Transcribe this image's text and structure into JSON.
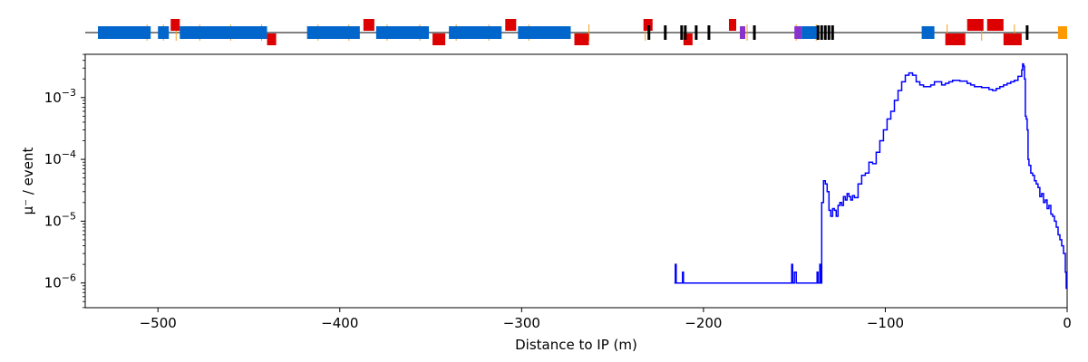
{
  "chart_data": {
    "type": "line",
    "title": "",
    "xlabel": "Distance to IP (m)",
    "ylabel": "μ⁻ / event",
    "xlim": [
      -540,
      0
    ],
    "ylim_exp": [
      -6.4,
      -2.3
    ],
    "yscale": "log",
    "grid": false,
    "x_ticks": [
      {
        "value": -500,
        "label": "−500"
      },
      {
        "value": -400,
        "label": "−400"
      },
      {
        "value": -300,
        "label": "−300"
      },
      {
        "value": -200,
        "label": "−200"
      },
      {
        "value": -100,
        "label": "−100"
      },
      {
        "value": 0,
        "label": "0"
      }
    ],
    "y_ticks": [
      {
        "exp": -6,
        "base": "10",
        "sup": "−6"
      },
      {
        "exp": -5,
        "base": "10",
        "sup": "−5"
      },
      {
        "exp": -4,
        "base": "10",
        "sup": "−4"
      },
      {
        "exp": -3,
        "base": "10",
        "sup": "−3"
      }
    ],
    "series": [
      {
        "color": "#0000ff",
        "points": [
          [
            -216,
            1e-06
          ],
          [
            -215.5,
            2e-06
          ],
          [
            -215,
            1e-06
          ],
          [
            -212,
            1e-06
          ],
          [
            -211.5,
            1.5e-06
          ],
          [
            -211,
            1e-06
          ],
          [
            -152,
            1e-06
          ],
          [
            -151.5,
            2e-06
          ],
          [
            -151,
            1e-06
          ],
          [
            -150,
            1.5e-06
          ],
          [
            -149,
            1e-06
          ],
          [
            -138,
            1e-06
          ],
          [
            -137.5,
            1.5e-06
          ],
          [
            -137,
            1e-06
          ],
          [
            -136,
            2e-06
          ],
          [
            -135.5,
            1e-06
          ],
          [
            -135,
            2e-05
          ],
          [
            -134,
            4.5e-05
          ],
          [
            -133,
            4e-05
          ],
          [
            -132,
            3e-05
          ],
          [
            -131,
            1.5e-05
          ],
          [
            -130,
            1.2e-05
          ],
          [
            -129,
            1.6e-05
          ],
          [
            -128,
            1.5e-05
          ],
          [
            -127,
            1.2e-05
          ],
          [
            -126,
            1.8e-05
          ],
          [
            -125,
            2e-05
          ],
          [
            -124,
            1.8e-05
          ],
          [
            -123,
            2.5e-05
          ],
          [
            -122,
            2.2e-05
          ],
          [
            -121,
            2.8e-05
          ],
          [
            -120,
            2.5e-05
          ],
          [
            -119,
            2.2e-05
          ],
          [
            -118,
            2.6e-05
          ],
          [
            -117,
            2.4e-05
          ],
          [
            -115,
            4e-05
          ],
          [
            -113,
            5.5e-05
          ],
          [
            -111,
            6e-05
          ],
          [
            -109,
            9e-05
          ],
          [
            -107,
            8.5e-05
          ],
          [
            -105,
            0.00013
          ],
          [
            -103,
            0.0002
          ],
          [
            -101,
            0.0003
          ],
          [
            -99,
            0.00045
          ],
          [
            -97,
            0.0006
          ],
          [
            -95,
            0.0009
          ],
          [
            -93,
            0.0013
          ],
          [
            -91,
            0.0018
          ],
          [
            -89,
            0.0023
          ],
          [
            -87,
            0.0025
          ],
          [
            -85,
            0.0023
          ],
          [
            -83,
            0.0018
          ],
          [
            -81,
            0.0016
          ],
          [
            -79,
            0.0015
          ],
          [
            -77,
            0.0015
          ],
          [
            -75,
            0.0016
          ],
          [
            -73,
            0.0018
          ],
          [
            -71,
            0.0018
          ],
          [
            -69,
            0.0016
          ],
          [
            -67,
            0.0017
          ],
          [
            -65,
            0.0018
          ],
          [
            -63,
            0.0019
          ],
          [
            -61,
            0.0019
          ],
          [
            -59,
            0.00185
          ],
          [
            -57,
            0.00185
          ],
          [
            -55,
            0.0017
          ],
          [
            -53,
            0.0016
          ],
          [
            -51,
            0.0015
          ],
          [
            -49,
            0.0015
          ],
          [
            -47,
            0.00145
          ],
          [
            -45,
            0.00145
          ],
          [
            -43,
            0.00135
          ],
          [
            -41,
            0.0013
          ],
          [
            -39,
            0.0014
          ],
          [
            -37,
            0.0015
          ],
          [
            -35,
            0.0016
          ],
          [
            -33,
            0.0017
          ],
          [
            -31,
            0.0018
          ],
          [
            -29,
            0.0019
          ],
          [
            -27,
            0.0022
          ],
          [
            -25,
            0.0028
          ],
          [
            -24.5,
            0.0035
          ],
          [
            -24,
            0.0032
          ],
          [
            -23.5,
            0.002
          ],
          [
            -23,
            0.0005
          ],
          [
            -22.5,
            0.00045
          ],
          [
            -22,
            0.0003
          ],
          [
            -21.5,
            0.0001
          ],
          [
            -21,
            8e-05
          ],
          [
            -20,
            6e-05
          ],
          [
            -19,
            5.5e-05
          ],
          [
            -18,
            4.5e-05
          ],
          [
            -17,
            4e-05
          ],
          [
            -16,
            3.5e-05
          ],
          [
            -15,
            2.5e-05
          ],
          [
            -14,
            2.8e-05
          ],
          [
            -13,
            2e-05
          ],
          [
            -12,
            2.2e-05
          ],
          [
            -11,
            1.6e-05
          ],
          [
            -10,
            1.8e-05
          ],
          [
            -9,
            1.3e-05
          ],
          [
            -8,
            1.2e-05
          ],
          [
            -7,
            1e-05
          ],
          [
            -6,
            8e-06
          ],
          [
            -5,
            6e-06
          ],
          [
            -4,
            5e-06
          ],
          [
            -3,
            4e-06
          ],
          [
            -2,
            3e-06
          ],
          [
            -1,
            1.5e-06
          ],
          [
            -0.5,
            8e-07
          ]
        ]
      }
    ]
  },
  "beamline": {
    "elements": [
      {
        "start": -533,
        "end": -504,
        "type": "blue"
      },
      {
        "start": -500,
        "end": -494,
        "type": "blue"
      },
      {
        "start": -493,
        "end": -488,
        "type": "red",
        "side": "up"
      },
      {
        "start": -488,
        "end": -440,
        "type": "blue"
      },
      {
        "start": -440,
        "end": -435,
        "type": "red",
        "side": "down"
      },
      {
        "start": -418,
        "end": -389,
        "type": "blue"
      },
      {
        "start": -387,
        "end": -381,
        "type": "red",
        "side": "up"
      },
      {
        "start": -380,
        "end": -351,
        "type": "blue"
      },
      {
        "start": -349,
        "end": -342,
        "type": "red",
        "side": "down"
      },
      {
        "start": -340,
        "end": -311,
        "type": "blue"
      },
      {
        "start": -309,
        "end": -303,
        "type": "red",
        "side": "up"
      },
      {
        "start": -302,
        "end": -273,
        "type": "blue"
      },
      {
        "start": -271,
        "end": -263,
        "type": "red",
        "side": "down"
      },
      {
        "start": -233,
        "end": -228,
        "type": "red",
        "side": "up"
      },
      {
        "start": -211,
        "end": -206,
        "type": "red",
        "side": "down"
      },
      {
        "start": -186,
        "end": -182,
        "type": "red",
        "side": "up"
      },
      {
        "start": -180,
        "end": -177,
        "type": "purple"
      },
      {
        "start": -150,
        "end": -146,
        "type": "purple"
      },
      {
        "start": -146,
        "end": -137,
        "type": "blue"
      },
      {
        "start": -80,
        "end": -73,
        "type": "blue"
      },
      {
        "start": -67,
        "end": -56,
        "type": "red",
        "side": "down"
      },
      {
        "start": -55,
        "end": -46,
        "type": "red",
        "side": "up"
      },
      {
        "start": -44,
        "end": -35,
        "type": "red",
        "side": "up"
      },
      {
        "start": -35,
        "end": -25,
        "type": "red",
        "side": "down"
      },
      {
        "start": -5,
        "end": 0,
        "type": "orange"
      }
    ],
    "markers": [
      -230,
      -221,
      -212,
      -210,
      -204,
      -197,
      -172,
      -137,
      -135,
      -133,
      -131,
      -129,
      -22
    ],
    "ticks": [
      -506,
      -497,
      -490,
      -477,
      -460,
      -443,
      -412,
      -395,
      -374,
      -356,
      -336,
      -318,
      -296,
      -263,
      -232,
      -176,
      -149,
      -138,
      -66,
      -47,
      -29
    ]
  }
}
